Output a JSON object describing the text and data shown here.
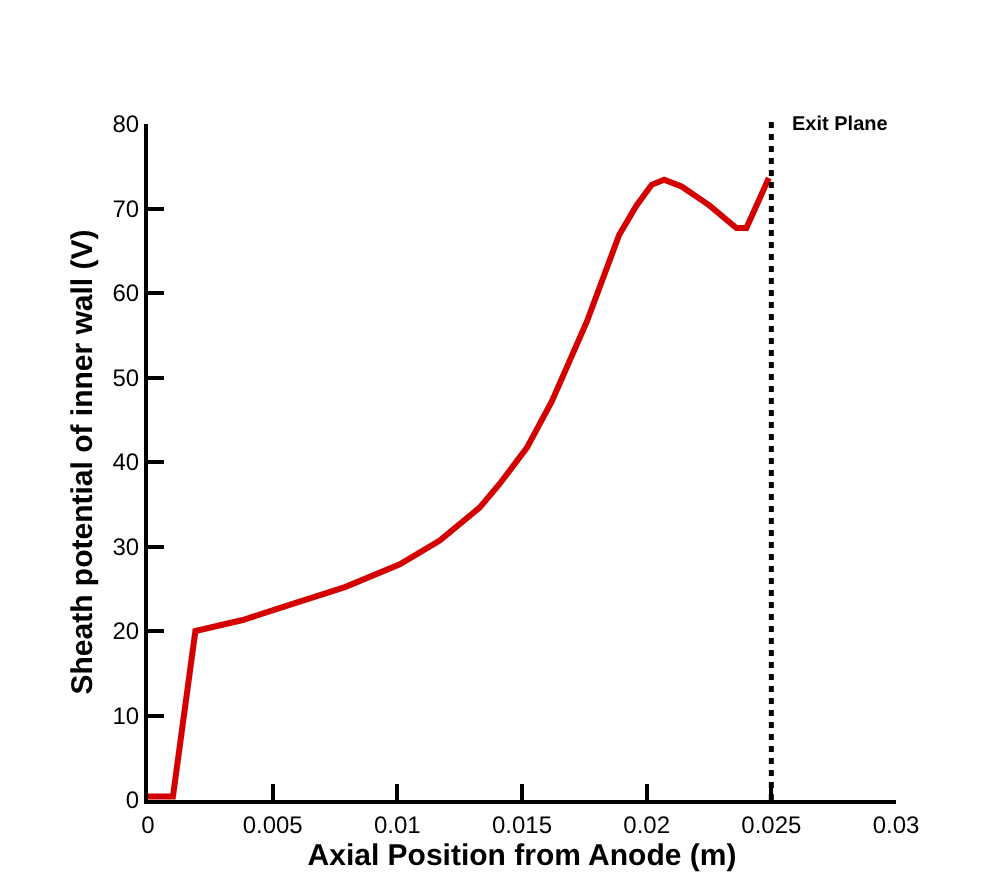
{
  "chart_data": {
    "type": "line",
    "xlabel": "Axial Position from Anode (m)",
    "ylabel": "Sheath potential of inner wall (V)",
    "x": [
      0,
      0.001,
      0.0019,
      0.0038,
      0.0058,
      0.0079,
      0.0101,
      0.0117,
      0.0133,
      0.0141,
      0.0152,
      0.0162,
      0.0176,
      0.0189,
      0.0196,
      0.0202,
      0.0207,
      0.0214,
      0.0225,
      0.0236,
      0.024,
      0.0249
    ],
    "series": [
      {
        "color": "#d40000",
        "values": [
          0.4,
          0.4,
          20,
          21.3,
          23.2,
          25.2,
          27.9,
          30.7,
          34.6,
          37.4,
          41.7,
          47.2,
          56.6,
          66.9,
          70.4,
          72.8,
          73.4,
          72.6,
          70.4,
          67.7,
          67.7,
          73.6
        ]
      }
    ],
    "xlim": [
      0,
      0.03
    ],
    "xticks": [
      0,
      0.005,
      0.01,
      0.015,
      0.02,
      0.025,
      0.03
    ],
    "ylim": [
      0,
      80
    ],
    "yticks": [
      0,
      10,
      20,
      30,
      40,
      50,
      60,
      70,
      80
    ],
    "ref_lines": [
      {
        "axis": "x",
        "value": 0.025,
        "label": "Exit Plane",
        "color": "#000000",
        "line_style": "dotted"
      }
    ],
    "grid": false,
    "marker": "none",
    "line_style": "solid"
  }
}
